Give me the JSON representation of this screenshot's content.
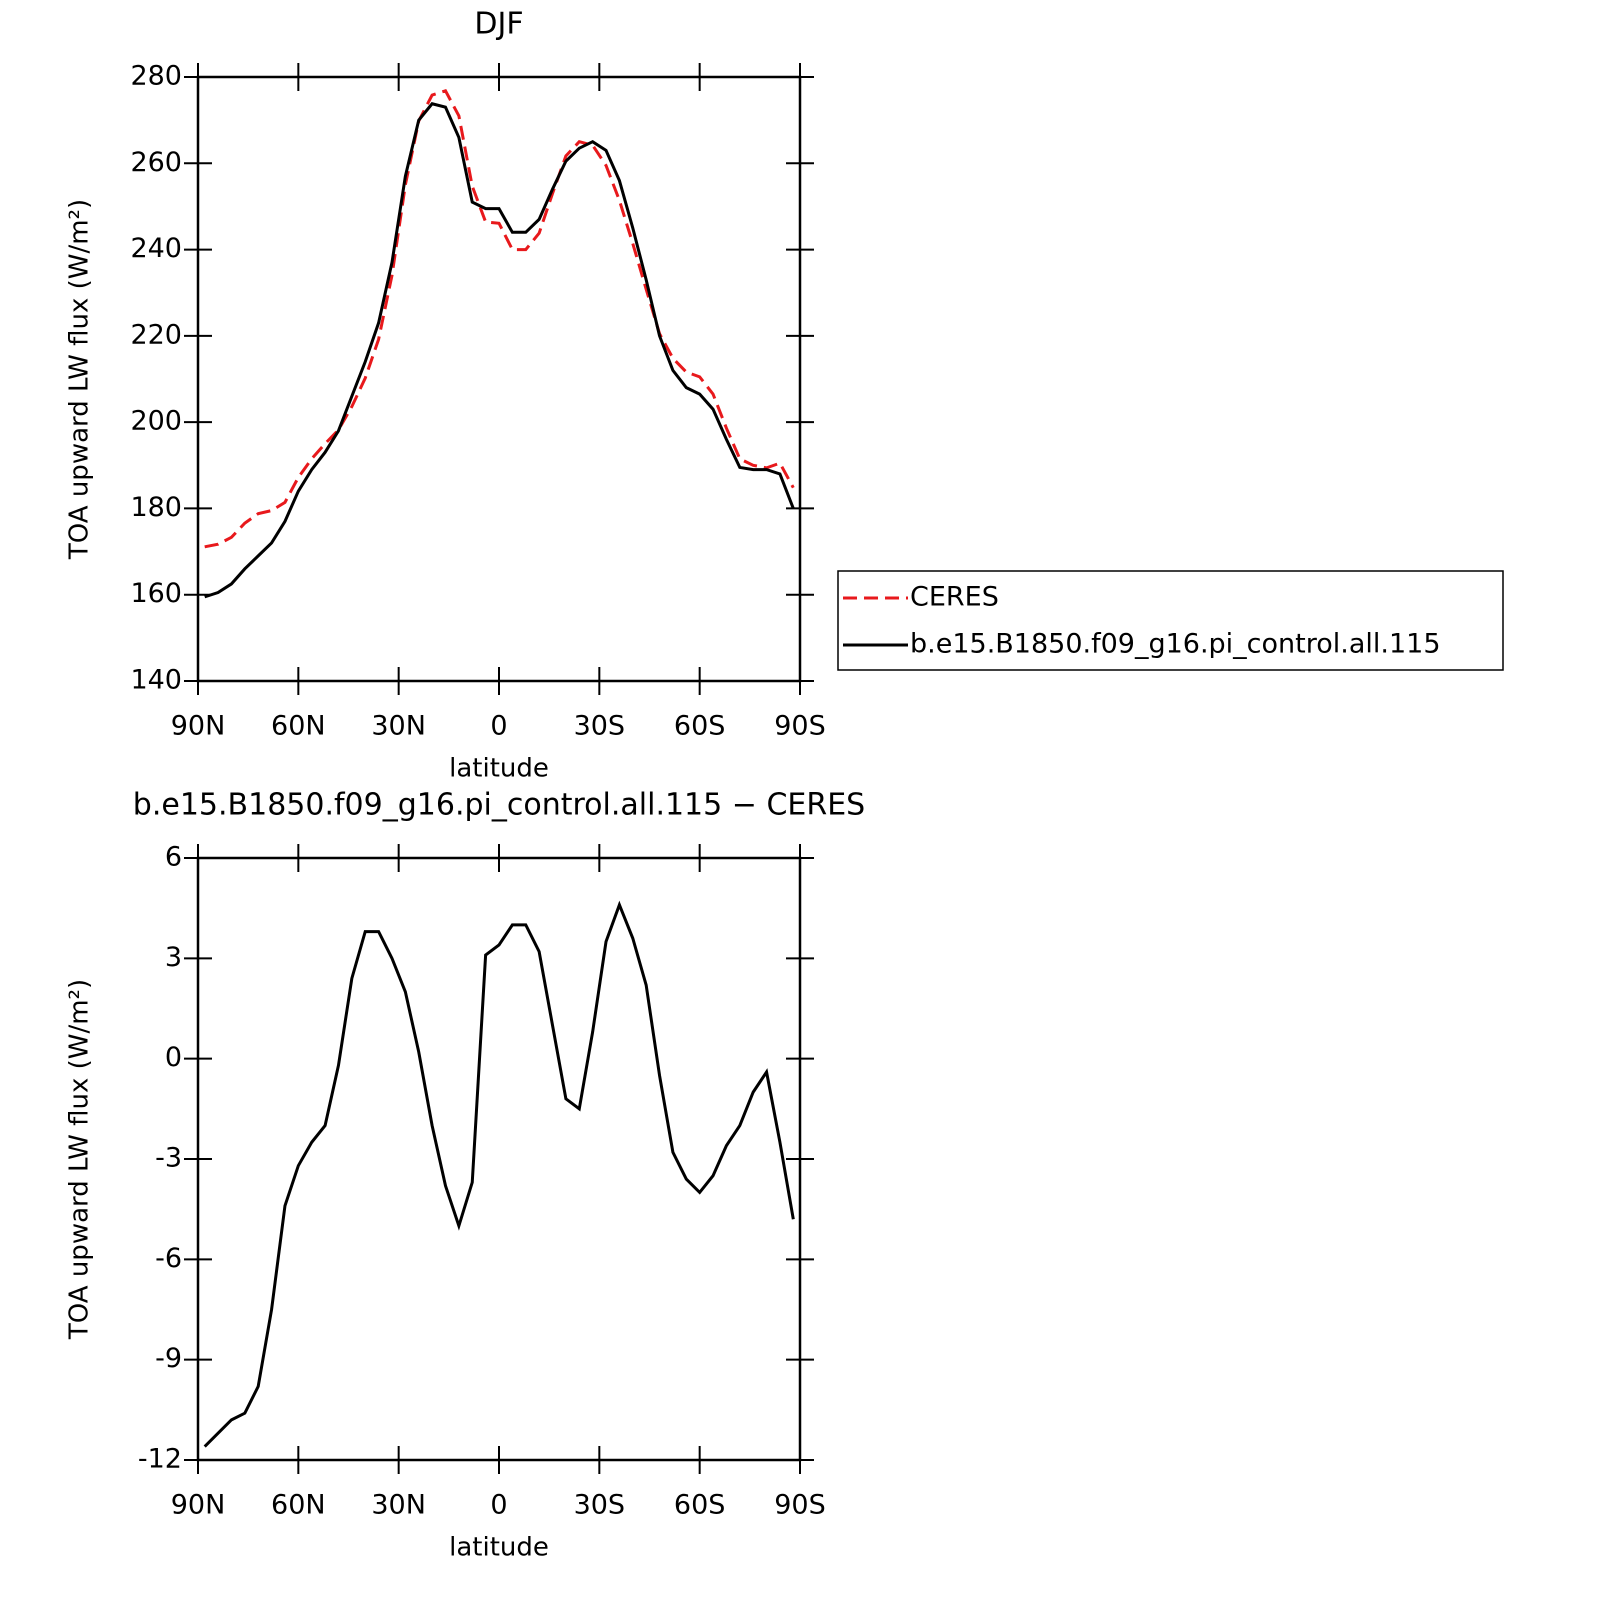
{
  "chart_data": [
    {
      "type": "line",
      "title": "DJF",
      "xlabel": "latitude",
      "ylabel": "TOA upward LW flux (W/m²)",
      "x": [
        88,
        84,
        80,
        76,
        72,
        68,
        64,
        60,
        56,
        52,
        48,
        44,
        40,
        36,
        32,
        28,
        24,
        20,
        16,
        12,
        8,
        4,
        0,
        -4,
        -8,
        -12,
        -16,
        -20,
        -24,
        -28,
        -32,
        -36,
        -40,
        -44,
        -48,
        -52,
        -56,
        -60,
        -64,
        -68,
        -72,
        -76,
        -80,
        -84,
        -88
      ],
      "series": [
        {
          "name": "CERES",
          "color": "#e8191c",
          "linestyle": "dashed",
          "values": [
            171.1,
            171.7,
            173.3,
            176.6,
            178.8,
            179.5,
            181.4,
            187.2,
            191.5,
            195,
            198.2,
            203.6,
            210.2,
            219.2,
            234,
            255,
            269.8,
            275.8,
            276.8,
            271,
            254.7,
            246.4,
            246.1,
            240,
            240,
            243.8,
            253,
            261.7,
            265,
            264.2,
            259.5,
            251.4,
            241.4,
            230.8,
            220.5,
            214.8,
            211.6,
            210.5,
            206.5,
            198.6,
            191.5,
            190,
            189.4,
            190.5,
            184.8
          ]
        },
        {
          "name": "b.e15.B1850.f09_g16.pi_control.all.115",
          "color": "#000000",
          "linestyle": "solid",
          "values": [
            159.5,
            160.5,
            162.5,
            166,
            169,
            172,
            177,
            184,
            189,
            193,
            198,
            206,
            214,
            223,
            237,
            257,
            270,
            273.8,
            273,
            266,
            251,
            249.5,
            249.5,
            244,
            244,
            247,
            254,
            260.5,
            263.5,
            265,
            263,
            256,
            245,
            233,
            220,
            212,
            208,
            206.5,
            203,
            196,
            189.5,
            189,
            189,
            188,
            180
          ]
        }
      ],
      "xlim": [
        90,
        -90
      ],
      "xticks": [
        {
          "value": 90,
          "label": "90N"
        },
        {
          "value": 60,
          "label": "60N"
        },
        {
          "value": 30,
          "label": "30N"
        },
        0,
        {
          "value": -30,
          "label": "30S"
        },
        {
          "value": -60,
          "label": "60S"
        },
        {
          "value": -90,
          "label": "90S"
        }
      ],
      "ylim": [
        140,
        280
      ],
      "yticks": [
        140,
        160,
        180,
        200,
        220,
        240,
        260,
        280
      ],
      "legend": "right"
    },
    {
      "type": "line",
      "title": "b.e15.B1850.f09_g16.pi_control.all.115 − CERES",
      "xlabel": "latitude",
      "ylabel": "TOA upward LW flux (W/m²)",
      "x": [
        88,
        84,
        80,
        76,
        72,
        68,
        64,
        60,
        56,
        52,
        48,
        44,
        40,
        36,
        32,
        28,
        24,
        20,
        16,
        12,
        8,
        4,
        0,
        -4,
        -8,
        -12,
        -16,
        -20,
        -24,
        -28,
        -32,
        -36,
        -40,
        -44,
        -48,
        -52,
        -56,
        -60,
        -64,
        -68,
        -72,
        -76,
        -80,
        -84,
        -88
      ],
      "color": "#000000",
      "values": [
        -11.6,
        -11.2,
        -10.8,
        -10.6,
        -9.8,
        -7.5,
        -4.4,
        -3.2,
        -2.5,
        -2.0,
        -0.2,
        2.4,
        3.8,
        3.8,
        3.0,
        2.0,
        0.2,
        -2.0,
        -3.8,
        -5.0,
        -3.7,
        3.1,
        3.4,
        4.0,
        4.0,
        3.2,
        1.0,
        -1.2,
        -1.5,
        0.8,
        3.5,
        4.6,
        3.6,
        2.2,
        -0.5,
        -2.8,
        -3.6,
        -4.0,
        -3.5,
        -2.6,
        -2.0,
        -1.0,
        -0.4,
        -2.5,
        -4.8
      ],
      "xlim": [
        90,
        -90
      ],
      "xticks": [
        {
          "value": 90,
          "label": "90N"
        },
        {
          "value": 60,
          "label": "60N"
        },
        {
          "value": 30,
          "label": "30N"
        },
        0,
        {
          "value": -30,
          "label": "30S"
        },
        {
          "value": -60,
          "label": "60S"
        },
        {
          "value": -90,
          "label": "90S"
        }
      ],
      "ylim": [
        -12,
        6
      ],
      "yticks": [
        -12,
        -9,
        -6,
        -3,
        0,
        3,
        6
      ]
    }
  ]
}
